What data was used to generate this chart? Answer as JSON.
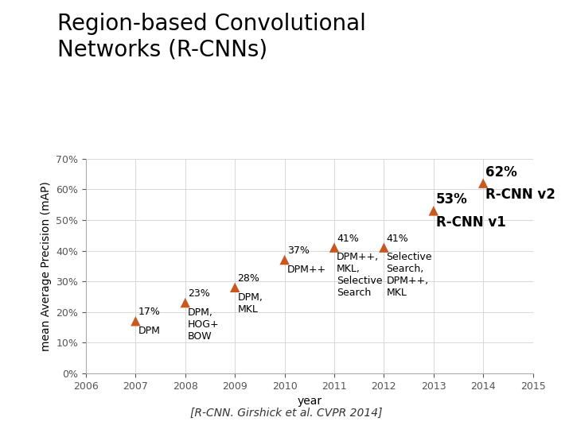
{
  "title": "Region-based Convolutional\nNetworks (R-CNNs)",
  "xlabel": "year",
  "ylabel": "mean Average Precision (mAP)",
  "points": [
    {
      "year": 2007,
      "map": 0.17,
      "label_pct": "17%",
      "label_desc": "DPM",
      "bold": false
    },
    {
      "year": 2008,
      "map": 0.23,
      "label_pct": "23%",
      "label_desc": "DPM,\nHOG+\nBOW",
      "bold": false
    },
    {
      "year": 2009,
      "map": 0.28,
      "label_pct": "28%",
      "label_desc": "DPM,\nMKL",
      "bold": false
    },
    {
      "year": 2010,
      "map": 0.37,
      "label_pct": "37%",
      "label_desc": "DPM++",
      "bold": false
    },
    {
      "year": 2011,
      "map": 0.41,
      "label_pct": "41%",
      "label_desc": "DPM++,\nMKL,\nSelective\nSearch",
      "bold": false
    },
    {
      "year": 2012,
      "map": 0.41,
      "label_pct": "41%",
      "label_desc": "Selective\nSearch,\nDPM++,\nMKL",
      "bold": false
    },
    {
      "year": 2013,
      "map": 0.53,
      "label_pct": "53%",
      "label_desc": "R-CNN v1",
      "bold": true
    },
    {
      "year": 2014,
      "map": 0.62,
      "label_pct": "62%",
      "label_desc": "R-CNN v2",
      "bold": true
    }
  ],
  "marker_color": "#C85820",
  "marker_size": 80,
  "xlim": [
    2006,
    2015
  ],
  "ylim": [
    0.0,
    0.7
  ],
  "yticks": [
    0.0,
    0.1,
    0.2,
    0.3,
    0.4,
    0.5,
    0.6,
    0.7
  ],
  "ytick_labels": [
    "0%",
    "10%",
    "20%",
    "30%",
    "40%",
    "50%",
    "60%",
    "70%"
  ],
  "xticks": [
    2006,
    2007,
    2008,
    2009,
    2010,
    2011,
    2012,
    2013,
    2014,
    2015
  ],
  "footnote": "[R-CNN. Girshick et al. CVPR 2014]",
  "title_fontsize": 20,
  "axis_label_fontsize": 10,
  "tick_fontsize": 9,
  "annotation_fontsize": 9,
  "bold_annotation_fontsize": 12,
  "footnote_fontsize": 10
}
